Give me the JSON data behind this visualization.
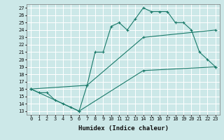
{
  "title": "",
  "xlabel": "Humidex (Indice chaleur)",
  "bg_color": "#cce8e8",
  "grid_color": "#ffffff",
  "line_color": "#1a7a6a",
  "xlim": [
    -0.5,
    23.5
  ],
  "ylim": [
    12.5,
    27.5
  ],
  "yticks": [
    13,
    14,
    15,
    16,
    17,
    18,
    19,
    20,
    21,
    22,
    23,
    24,
    25,
    26,
    27
  ],
  "xticks": [
    0,
    1,
    2,
    3,
    4,
    5,
    6,
    7,
    8,
    9,
    10,
    11,
    12,
    13,
    14,
    15,
    16,
    17,
    18,
    19,
    20,
    21,
    22,
    23
  ],
  "line1_x": [
    0,
    1,
    2,
    3,
    4,
    5,
    6,
    7,
    8,
    9,
    10,
    11,
    12,
    13,
    14,
    15,
    16,
    17,
    18,
    19,
    20,
    21,
    22,
    23
  ],
  "line1_y": [
    16,
    15.5,
    15.5,
    14.5,
    14,
    13.5,
    13,
    16.5,
    21,
    21,
    24.5,
    25,
    24,
    25.5,
    27,
    26.5,
    26.5,
    26.5,
    25,
    25,
    24,
    21,
    20,
    19
  ],
  "line2_x": [
    0,
    6,
    14,
    23
  ],
  "line2_y": [
    16,
    13,
    18.5,
    19
  ],
  "line3_x": [
    0,
    7,
    14,
    23
  ],
  "line3_y": [
    16,
    16.5,
    23,
    24
  ]
}
